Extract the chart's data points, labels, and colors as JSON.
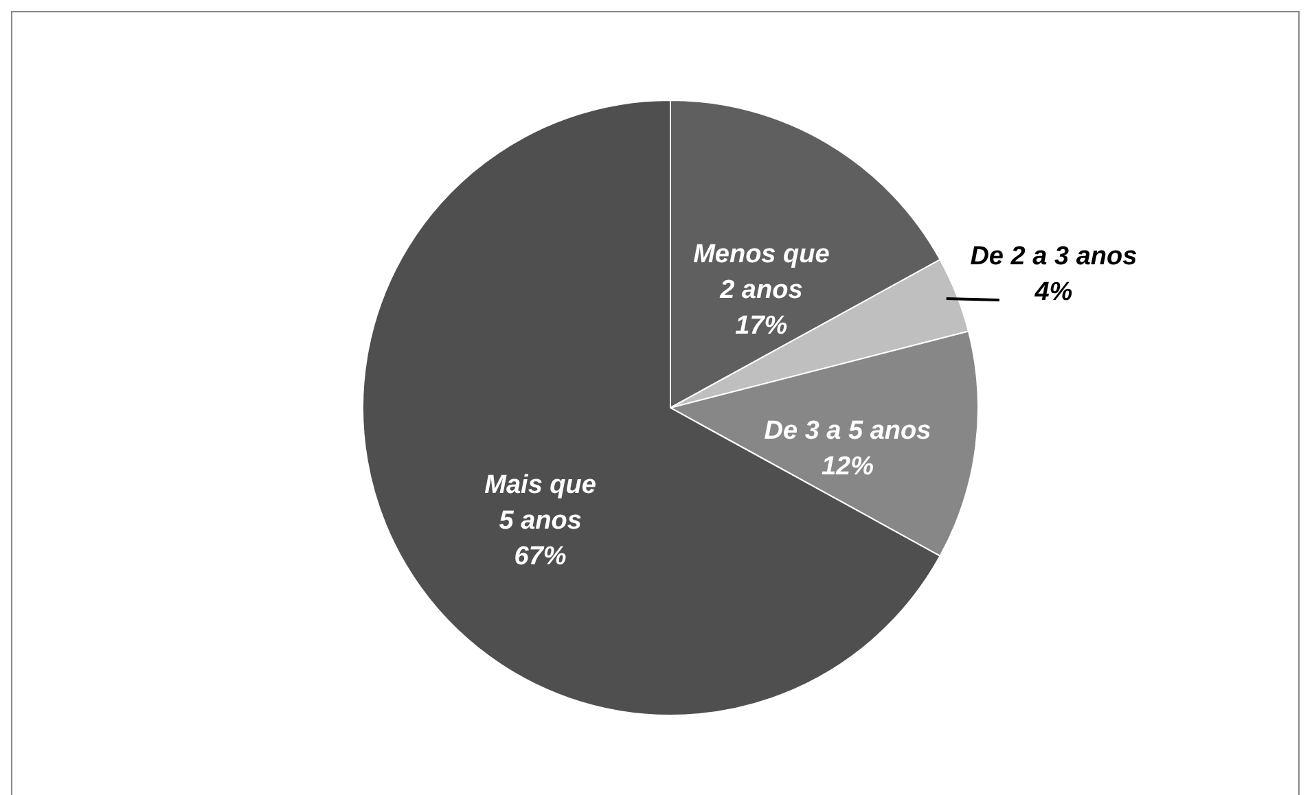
{
  "chart_data": {
    "type": "pie",
    "categories": [
      "Menos que\n2 anos",
      "De 2 a 3 anos",
      "De 3 a 5 anos",
      "Mais que\n5 anos"
    ],
    "values": [
      17,
      4,
      12,
      67
    ],
    "colors": [
      "#5f5f5f",
      "#bfbfbf",
      "#878787",
      "#4f4f4f"
    ],
    "value_labels": [
      "17%",
      "4%",
      "12%",
      "67%"
    ]
  }
}
